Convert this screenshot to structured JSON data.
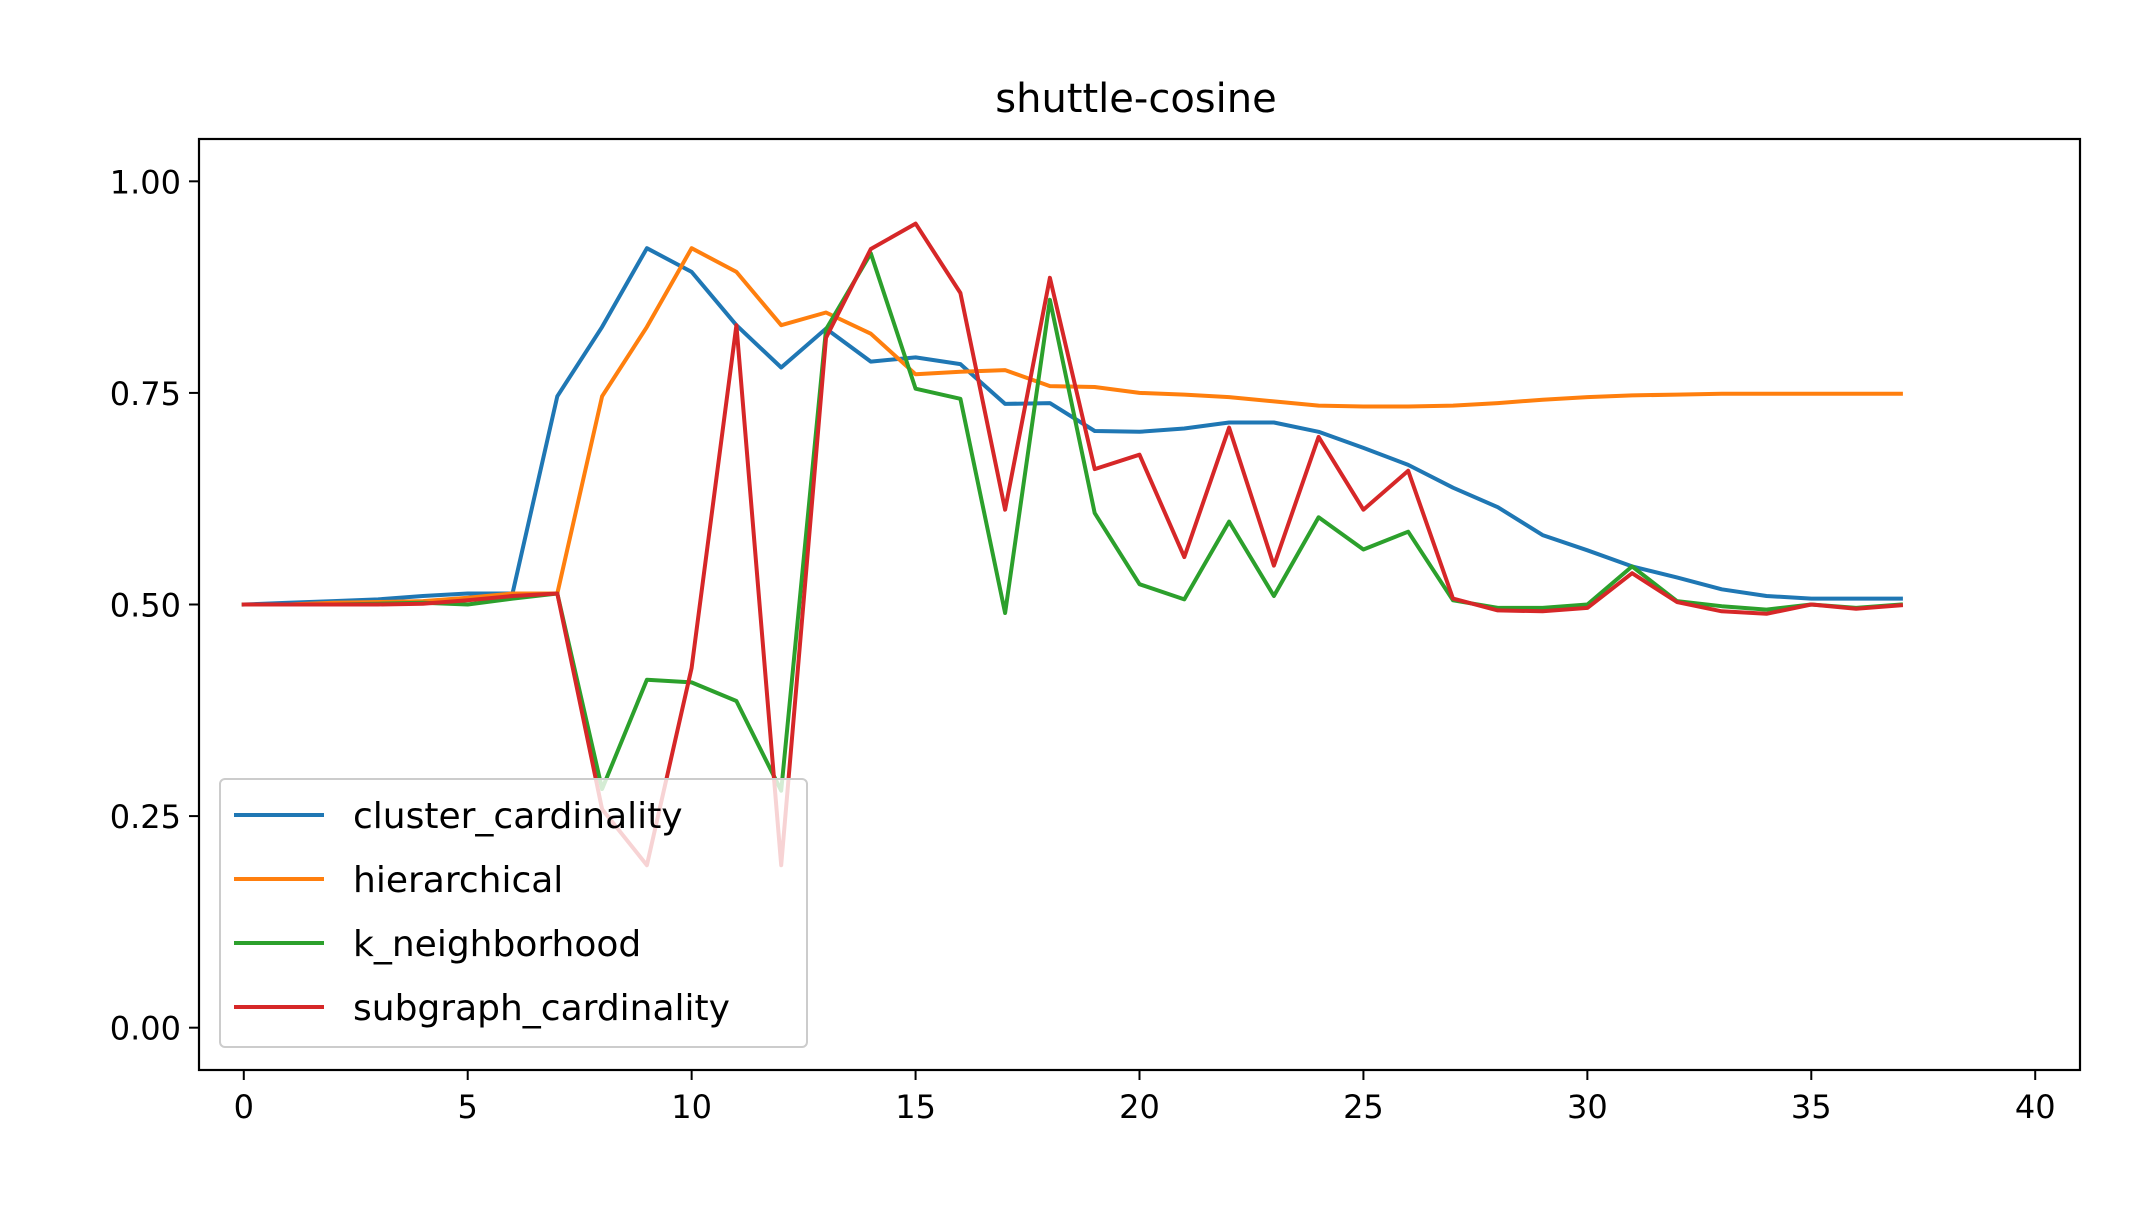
{
  "chart_data": {
    "type": "line",
    "title": "shuttle-cosine",
    "xlabel": "",
    "ylabel": "",
    "xlim": [
      -1,
      41
    ],
    "ylim": [
      -0.05,
      1.05
    ],
    "xticks": [
      "0",
      "5",
      "10",
      "15",
      "20",
      "25",
      "30",
      "35",
      "40"
    ],
    "yticks": [
      "0.00",
      "0.25",
      "0.50",
      "0.75",
      "1.00"
    ],
    "grid": false,
    "legend_position": "lower-left",
    "x": [
      0,
      1,
      2,
      3,
      4,
      5,
      6,
      7,
      8,
      9,
      10,
      11,
      12,
      13,
      14,
      15,
      16,
      17,
      18,
      19,
      20,
      21,
      22,
      23,
      24,
      25,
      26,
      27,
      28,
      29,
      30,
      31,
      32,
      33,
      34,
      35,
      36,
      37
    ],
    "series": [
      {
        "name": "cluster_cardinality",
        "color": "#1f77b4",
        "values": [
          0.5,
          0.502,
          0.504,
          0.506,
          0.51,
          0.513,
          0.513,
          0.746,
          0.828,
          0.921,
          0.893,
          0.83,
          0.78,
          0.826,
          0.787,
          0.792,
          0.784,
          0.737,
          0.738,
          0.705,
          0.704,
          0.708,
          0.715,
          0.715,
          0.704,
          0.685,
          0.665,
          0.638,
          0.615,
          0.582,
          0.564,
          0.545,
          0.532,
          0.518,
          0.51,
          0.507,
          0.507,
          0.507
        ]
      },
      {
        "name": "hierarchical",
        "color": "#ff7f0e",
        "values": [
          0.5,
          0.5,
          0.502,
          0.503,
          0.504,
          0.508,
          0.513,
          0.513,
          0.746,
          0.828,
          0.921,
          0.893,
          0.83,
          0.845,
          0.82,
          0.772,
          0.775,
          0.777,
          0.758,
          0.757,
          0.75,
          0.748,
          0.745,
          0.74,
          0.735,
          0.734,
          0.734,
          0.735,
          0.738,
          0.742,
          0.745,
          0.747,
          0.748,
          0.749,
          0.749,
          0.749,
          0.749,
          0.749
        ]
      },
      {
        "name": "k_neighborhood",
        "color": "#2ca02c",
        "values": [
          0.5,
          0.5,
          0.5,
          0.501,
          0.502,
          0.5,
          0.507,
          0.513,
          0.282,
          0.411,
          0.408,
          0.386,
          0.28,
          0.825,
          0.915,
          0.755,
          0.743,
          0.49,
          0.86,
          0.608,
          0.524,
          0.506,
          0.598,
          0.51,
          0.603,
          0.565,
          0.586,
          0.505,
          0.496,
          0.496,
          0.5,
          0.545,
          0.504,
          0.498,
          0.494,
          0.5,
          0.496,
          0.5
        ]
      },
      {
        "name": "subgraph_cardinality",
        "color": "#d62728",
        "values": [
          0.5,
          0.5,
          0.5,
          0.5,
          0.501,
          0.505,
          0.51,
          0.513,
          0.258,
          0.192,
          0.425,
          0.83,
          0.192,
          0.815,
          0.92,
          0.95,
          0.868,
          0.612,
          0.886,
          0.66,
          0.677,
          0.556,
          0.709,
          0.546,
          0.698,
          0.612,
          0.658,
          0.507,
          0.493,
          0.492,
          0.496,
          0.537,
          0.503,
          0.492,
          0.489,
          0.5,
          0.495,
          0.499
        ]
      }
    ]
  }
}
